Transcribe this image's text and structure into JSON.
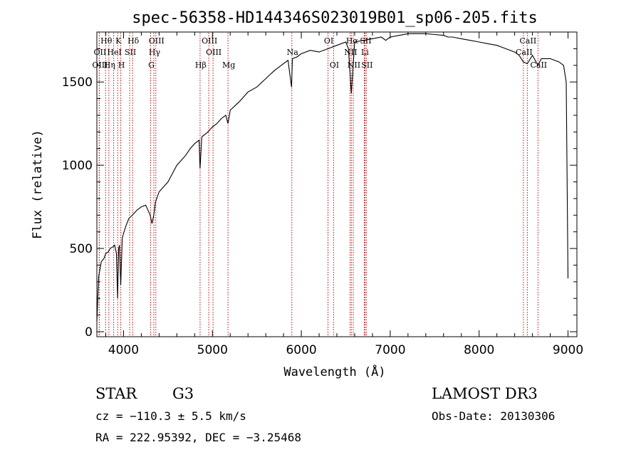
{
  "chart_data": {
    "type": "line",
    "title": "spec-56358-HD144346S023019B01_sp06-205.fits",
    "xlabel": "Wavelength (Å)",
    "ylabel": "Flux (relative)",
    "xlim": [
      3700,
      9100
    ],
    "ylim": [
      -30,
      1800
    ],
    "xticks": [
      4000,
      5000,
      6000,
      7000,
      8000,
      9000
    ],
    "yticks": [
      0,
      500,
      1000,
      1500
    ],
    "grid": false,
    "series": [
      {
        "name": "spectrum",
        "x": [
          3700,
          3720,
          3750,
          3780,
          3800,
          3830,
          3850,
          3880,
          3900,
          3920,
          3933,
          3945,
          3955,
          3968,
          3985,
          4000,
          4030,
          4060,
          4100,
          4150,
          4200,
          4250,
          4300,
          4320,
          4340,
          4360,
          4400,
          4450,
          4500,
          4550,
          4600,
          4650,
          4700,
          4750,
          4800,
          4850,
          4861,
          4880,
          4950,
          5000,
          5050,
          5100,
          5150,
          5175,
          5200,
          5300,
          5400,
          5500,
          5600,
          5700,
          5800,
          5850,
          5890,
          5900,
          5950,
          6000,
          6100,
          6200,
          6300,
          6400,
          6500,
          6530,
          6563,
          6600,
          6700,
          6800,
          6900,
          6950,
          7000,
          7100,
          7200,
          7300,
          7400,
          7500,
          7600,
          7650,
          7700,
          7800,
          7900,
          8000,
          8100,
          8200,
          8300,
          8400,
          8450,
          8498,
          8542,
          8600,
          8662,
          8700,
          8800,
          8900,
          8950,
          8980,
          9000
        ],
        "values": [
          60,
          330,
          420,
          440,
          470,
          480,
          500,
          510,
          520,
          470,
          200,
          500,
          520,
          280,
          560,
          590,
          640,
          680,
          700,
          730,
          750,
          760,
          700,
          650,
          700,
          780,
          840,
          870,
          900,
          950,
          1000,
          1030,
          1060,
          1100,
          1130,
          1150,
          980,
          1170,
          1200,
          1230,
          1250,
          1280,
          1300,
          1250,
          1330,
          1380,
          1440,
          1470,
          1520,
          1570,
          1610,
          1630,
          1470,
          1640,
          1650,
          1670,
          1690,
          1680,
          1700,
          1720,
          1740,
          1700,
          1430,
          1740,
          1750,
          1760,
          1770,
          1750,
          1770,
          1780,
          1790,
          1790,
          1790,
          1785,
          1780,
          1770,
          1770,
          1760,
          1750,
          1740,
          1730,
          1720,
          1700,
          1680,
          1660,
          1620,
          1610,
          1660,
          1600,
          1640,
          1640,
          1620,
          1600,
          1500,
          320
        ]
      }
    ],
    "spectral_lines": [
      {
        "label": "Hθ",
        "wavelength": 3798,
        "row": 1
      },
      {
        "label": "OII",
        "wavelength": 3727,
        "row": 2
      },
      {
        "label": "OIII",
        "wavelength": 3727,
        "row": 3
      },
      {
        "label": "K",
        "wavelength": 3934,
        "row": 1
      },
      {
        "label": "HeI",
        "wavelength": 3889,
        "row": 2
      },
      {
        "label": "Hη",
        "wavelength": 3835,
        "row": 3
      },
      {
        "label": "Hδ",
        "wavelength": 4102,
        "row": 1
      },
      {
        "label": "SII",
        "wavelength": 4069,
        "row": 2
      },
      {
        "label": "H",
        "wavelength": 3969,
        "row": 3
      },
      {
        "label": "OIII",
        "wavelength": 4363,
        "row": 1
      },
      {
        "label": "Hγ",
        "wavelength": 4341,
        "row": 2
      },
      {
        "label": "G",
        "wavelength": 4305,
        "row": 3
      },
      {
        "label": "OIII",
        "wavelength": 4959,
        "row": 1
      },
      {
        "label": "OIII",
        "wavelength": 5007,
        "row": 2
      },
      {
        "label": "Hβ",
        "wavelength": 4861,
        "row": 3
      },
      {
        "label": "Mg",
        "wavelength": 5175,
        "row": 3
      },
      {
        "label": "Na",
        "wavelength": 5893,
        "row": 2
      },
      {
        "label": "OI",
        "wavelength": 6300,
        "row": 1
      },
      {
        "label": "OI",
        "wavelength": 6363,
        "row": 3
      },
      {
        "label": "Hα",
        "wavelength": 6563,
        "row": 1
      },
      {
        "label": "SII",
        "wavelength": 6716,
        "row": 1
      },
      {
        "label": "NII",
        "wavelength": 6548,
        "row": 2
      },
      {
        "label": "Li",
        "wavelength": 6708,
        "row": 2
      },
      {
        "label": "NII",
        "wavelength": 6584,
        "row": 3
      },
      {
        "label": "SII",
        "wavelength": 6731,
        "row": 3
      },
      {
        "label": "CaII",
        "wavelength": 8542,
        "row": 1
      },
      {
        "label": "CaII",
        "wavelength": 8498,
        "row": 2
      },
      {
        "label": "CaII",
        "wavelength": 8662,
        "row": 3
      }
    ]
  },
  "info": {
    "class_label": "STAR",
    "subclass": "G3",
    "survey": "LAMOST DR3",
    "cz": "cz = −110.3 ± 5.5 km/s",
    "obs_date": "Obs-Date: 20130306",
    "coords": "RA = 222.95392, DEC =  −3.25468"
  },
  "colors": {
    "line": "#000000",
    "marker": "#cc0000"
  }
}
